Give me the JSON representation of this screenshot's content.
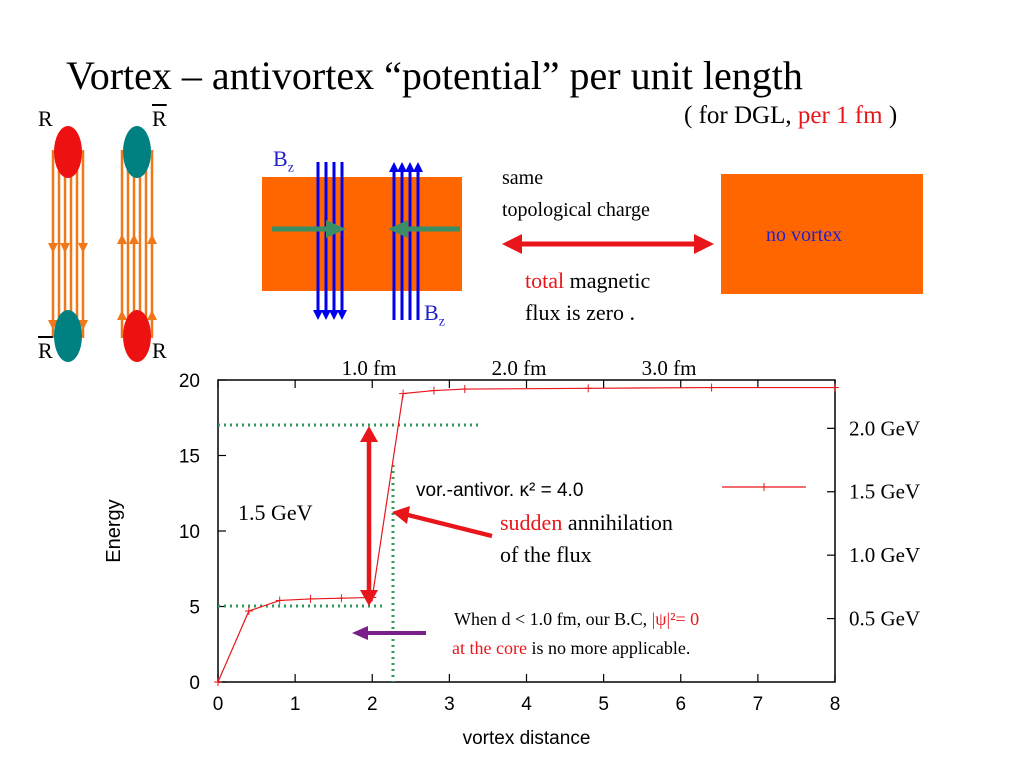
{
  "title": "Vortex – antivortex “potential” per unit length",
  "subtitle": {
    "prefix": "( for DGL, ",
    "highlight": "per 1 fm",
    "suffix": " )"
  },
  "vortex_diagram": {
    "left_label_top": "R",
    "left_label_bottom": "R",
    "right_label_top": "R",
    "right_label_bottom": "R",
    "colors": {
      "red_blob": "#ee1111",
      "teal_blob": "#008080",
      "flux_lines": "#f07818"
    }
  },
  "flux_box": {
    "bz_top": "B",
    "bz_top_sub": "z",
    "bz_bottom": "B",
    "bz_bottom_sub": "z",
    "colors": {
      "box": "#ff6600",
      "field_lines": "#0000ee",
      "arrows": "#3a8f66"
    }
  },
  "annotations": {
    "same_line1": "same",
    "same_line2": "topological charge",
    "no_vortex": "no vortex",
    "total_word": "total",
    "magnetic": " magnetic",
    "flux_zero": "flux is zero .",
    "gap_label": "1.5 GeV",
    "sudden_word": "sudden",
    "annihilation": " annihilation",
    "of_the_flux": "of the flux",
    "note_line1_prefix": "When d < 1.0 fm, our B.C, ",
    "note_line1_red": "|ψ|²= 0",
    "note_line2_red": "at the core",
    "note_line2_suffix": " is no more applicable."
  },
  "chart_data": {
    "type": "line",
    "xlabel": "vortex distance",
    "ylabel": "Energy",
    "xlim": [
      0,
      8
    ],
    "ylim": [
      0,
      20
    ],
    "xticks": [
      "0",
      "1",
      "2",
      "3",
      "4",
      "5",
      "6",
      "7",
      "8"
    ],
    "yticks": [
      "0",
      "5",
      "10",
      "15",
      "20"
    ],
    "top_ticks": [
      "1.0 fm",
      "2.0 fm",
      "3.0 fm"
    ],
    "right_ticks": [
      "0.5 GeV",
      "1.0 GeV",
      "1.5 GeV",
      "2.0 GeV"
    ],
    "legend": "vor.-antivor. κ² = 4.0",
    "legend_position": "top-right",
    "series": [
      {
        "name": "vor.-antivor. κ² = 4.0",
        "color": "#e8161b",
        "x": [
          0,
          0.4,
          0.8,
          1.2,
          1.6,
          2.0,
          2.4,
          2.8,
          3.2,
          4.8,
          6.4,
          8.0
        ],
        "y": [
          0,
          4.7,
          5.4,
          5.5,
          5.55,
          5.6,
          19.1,
          19.3,
          19.4,
          19.45,
          19.5,
          19.5
        ]
      }
    ]
  }
}
